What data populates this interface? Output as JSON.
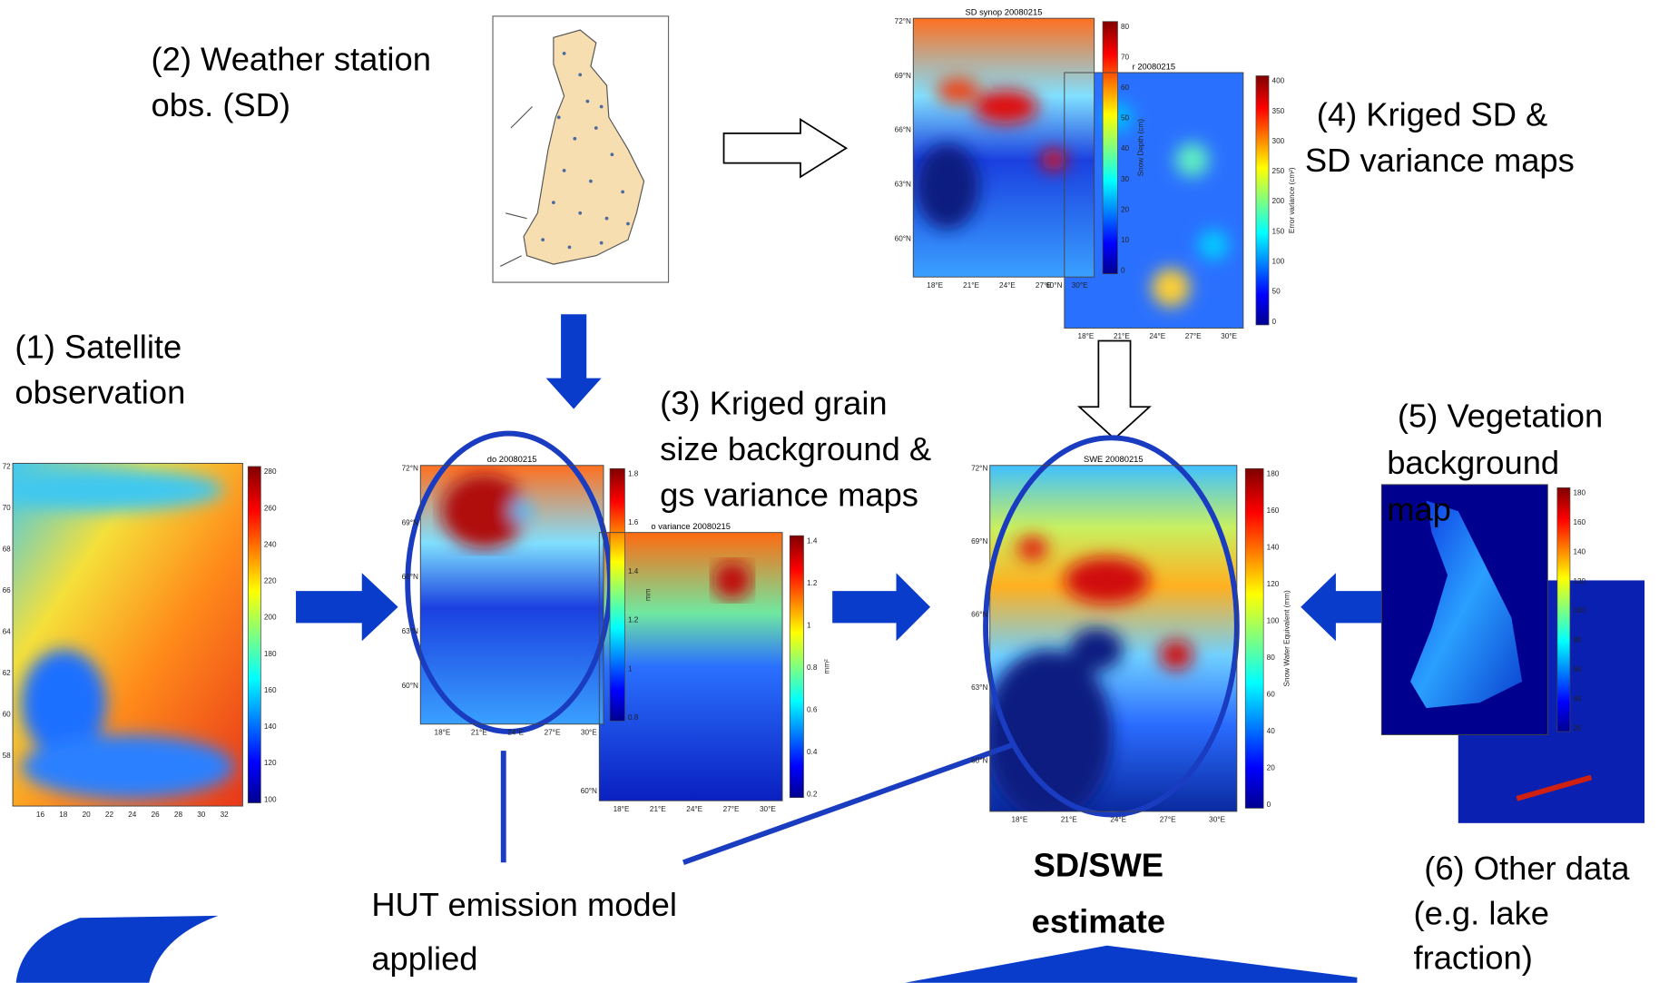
{
  "labels": {
    "satellite": [
      "(1) Satellite",
      "observation"
    ],
    "stations": [
      "(2) Weather station",
      "obs. (SD)"
    ],
    "grain_size": [
      "(3) Kriged grain",
      "size background &",
      "gs variance maps"
    ],
    "kriged_sd": [
      "(4) Kriged SD &",
      "SD variance maps"
    ],
    "vegetation": [
      "(5) Vegetation",
      "background",
      "map"
    ],
    "other": [
      "(6) Other data",
      "(e.g. lake",
      "fraction)"
    ],
    "result": [
      "SD/SWE",
      "estimate"
    ],
    "hut": [
      "HUT emission model",
      "applied"
    ]
  },
  "maps": {
    "satellite": {
      "colorbar_ticks": [
        100,
        120,
        140,
        160,
        180,
        200,
        220,
        240,
        260,
        280
      ],
      "x_ticks": [
        16,
        18,
        20,
        22,
        24,
        26,
        28,
        30,
        32
      ],
      "y_ticks": [
        58,
        60,
        62,
        64,
        66,
        68,
        70,
        72
      ]
    },
    "sd_synop": {
      "title": "SD synop  20080215",
      "colorbar_label": "Snow Depth (cm)",
      "colorbar_ticks": [
        0,
        10,
        20,
        30,
        40,
        50,
        60,
        70,
        80
      ],
      "x_ticks": [
        "18°E",
        "21°E",
        "24°E",
        "27°E",
        "30°E"
      ],
      "y_ticks": [
        "60°N",
        "63°N",
        "66°N",
        "69°N",
        "72°N"
      ]
    },
    "sd_variance": {
      "title": "r  20080215",
      "colorbar_label": "Error variance (cm²)",
      "colorbar_ticks": [
        0,
        50,
        100,
        150,
        200,
        250,
        300,
        350,
        400
      ],
      "x_ticks": [
        "18°E",
        "21°E",
        "24°E",
        "27°E",
        "30°E"
      ],
      "y_ticks": [
        "60°N"
      ]
    },
    "grain_size": {
      "title": "do  20080215",
      "colorbar_label": "mm",
      "colorbar_ticks": [
        0.8,
        1,
        1.2,
        1.4,
        1.6,
        1.8
      ],
      "x_ticks": [
        "18°E",
        "21°E",
        "24°E",
        "27°E",
        "30°E"
      ],
      "y_ticks": [
        "60°N",
        "63°N",
        "66°N",
        "69°N",
        "72°N"
      ]
    },
    "gs_variance": {
      "title": "o variance  20080215",
      "colorbar_label": "mm²",
      "colorbar_ticks": [
        0.2,
        0.4,
        0.6,
        0.8,
        1,
        1.2,
        1.4
      ],
      "x_ticks": [
        "18°E",
        "21°E",
        "24°E",
        "27°E",
        "30°E"
      ],
      "y_ticks": [
        "60°N"
      ]
    },
    "swe": {
      "title": "SWE  20080215",
      "colorbar_label": "Snow Water Equivalent (mm)",
      "colorbar_ticks": [
        0,
        20,
        40,
        60,
        80,
        100,
        120,
        140,
        160,
        180
      ],
      "x_ticks": [
        "18°E",
        "21°E",
        "24°E",
        "27°E",
        "30°E"
      ],
      "y_ticks": [
        "60°N",
        "63°N",
        "66°N",
        "69°N",
        "72°N"
      ]
    },
    "vegetation": {
      "colorbar_ticks": [
        20,
        40,
        60,
        80,
        100,
        120,
        140,
        160,
        180
      ]
    }
  }
}
